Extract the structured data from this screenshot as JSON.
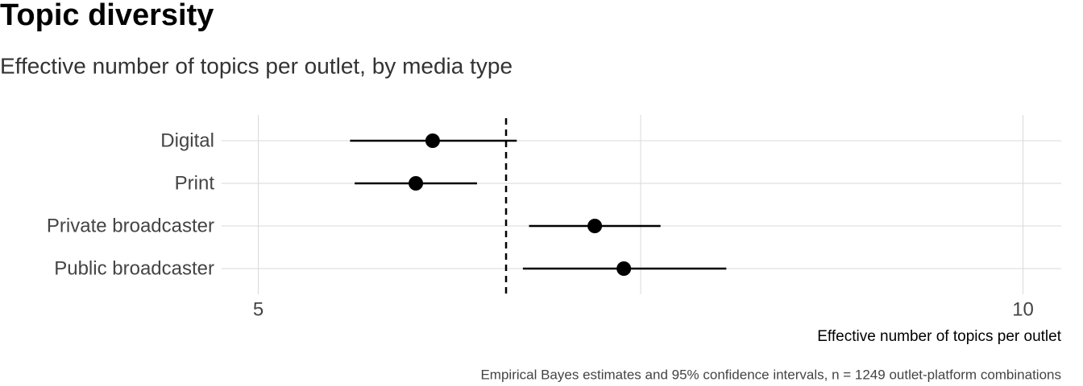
{
  "chart_data": {
    "type": "pointrange",
    "title": "Topic diversity",
    "subtitle": "Effective number of topics per outlet, by media type",
    "x_label": "Effective number of topics per outlet",
    "caption": "Empirical Bayes estimates and 95% confidence intervals, n = 1249 outlet-platform combinations",
    "categories": [
      "Digital",
      "Print",
      "Private broadcaster",
      "Public broadcaster"
    ],
    "values": [
      6.14,
      6.03,
      7.2,
      7.39
    ],
    "lower": [
      5.6,
      5.63,
      6.77,
      6.73
    ],
    "upper": [
      6.69,
      6.43,
      7.63,
      8.06
    ],
    "color": "#000000",
    "reference_line": 6.62,
    "xlim": [
      4.76,
      10.25
    ],
    "xticks": [
      5,
      10
    ],
    "x_minor_ticks": [
      7.5
    ],
    "grid": true
  }
}
